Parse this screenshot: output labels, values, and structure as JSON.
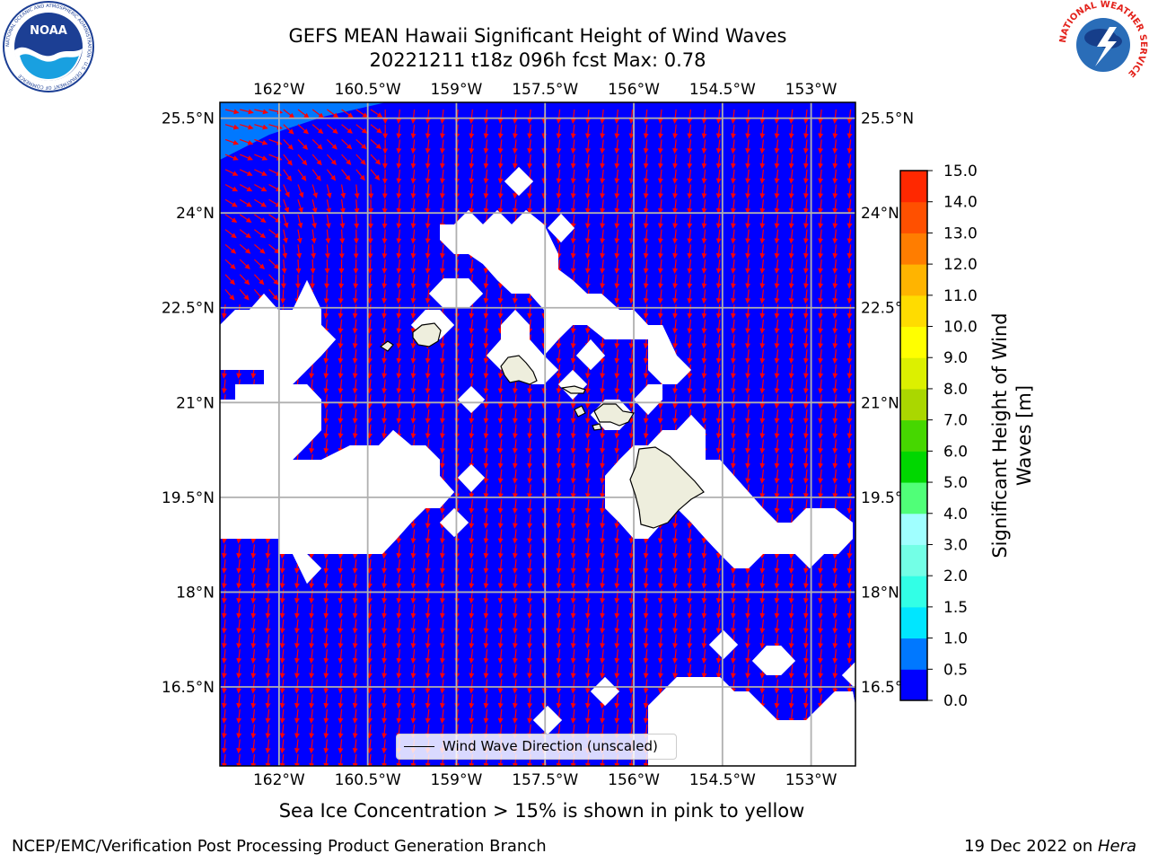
{
  "title": {
    "line1": "GEFS MEAN Hawaii Significant Height of Wind Waves",
    "line2": "20221211 t18z 096h fcst   Max: 0.78"
  },
  "logos": {
    "noaa": {
      "text": "NOAA",
      "ring_text": "NATIONAL OCEANIC AND ATMOSPHERIC ADMINISTRATION · U.S. DEPARTMENT OF COMMERCE"
    },
    "nws": {
      "ring_text": "NATIONAL WEATHER SERVICE"
    }
  },
  "map": {
    "lon_ticks": [
      "162°W",
      "160.5°W",
      "159°W",
      "157.5°W",
      "156°W",
      "154.5°W",
      "153°W"
    ],
    "lat_ticks": [
      "25.5°N",
      "24°N",
      "22.5°N",
      "21°N",
      "19.5°N",
      "18°N",
      "16.5°N"
    ],
    "lon_values": [
      -162,
      -160.5,
      -159,
      -157.5,
      -156,
      -154.5,
      -153
    ],
    "lat_values": [
      25.5,
      24,
      22.5,
      21,
      19.5,
      18,
      16.5
    ],
    "lon_range": [
      -163,
      -152.25
    ],
    "lat_range": [
      15.25,
      25.75
    ],
    "colors": {
      "ocean": "#0000ff",
      "arrow": "#ff0000",
      "land": "#eeeedd",
      "grid": "#b0b0b0",
      "masked": "#ffffff",
      "corner_band": "#0078ff"
    },
    "legend": {
      "label": "Wind Wave Direction (unscaled)"
    },
    "note": "Sea Ice Concentration > 15% is shown in pink to yellow"
  },
  "colorbar": {
    "title": "Significant Height of Wind Waves [m]",
    "levels": [
      "0.0",
      "0.5",
      "1.0",
      "1.5",
      "2.0",
      "3.0",
      "4.0",
      "5.0",
      "6.0",
      "7.0",
      "8.0",
      "9.0",
      "10.0",
      "11.0",
      "12.0",
      "13.0",
      "14.0",
      "15.0"
    ],
    "colors": [
      "#0000ff",
      "#0078ff",
      "#00e6ff",
      "#32ffe6",
      "#73ffe6",
      "#a0ffff",
      "#50ff78",
      "#00d700",
      "#46d700",
      "#aad700",
      "#dcf000",
      "#ffff00",
      "#ffdc00",
      "#ffb400",
      "#ff7d00",
      "#ff5000",
      "#ff2800",
      "#ff0000"
    ]
  },
  "footer": {
    "left": "NCEP/EMC/Verification Post Processing Product Generation Branch",
    "right_prefix": "19 Dec 2022 on ",
    "right_machine": "Hera"
  }
}
